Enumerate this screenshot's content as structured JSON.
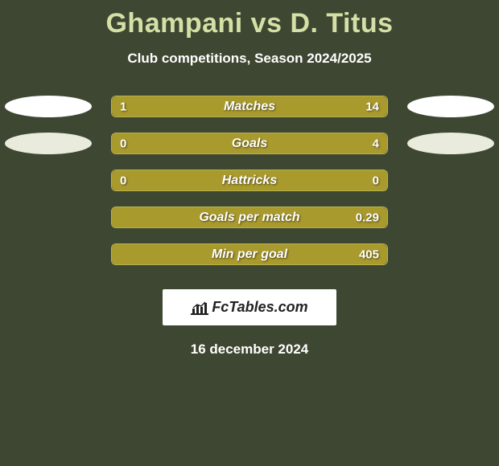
{
  "title": "Ghampani vs D. Titus",
  "subtitle": "Club competitions, Season 2024/2025",
  "date": "16 december 2024",
  "logo_text": "FcTables.com",
  "colors": {
    "title": "#d4e0a5",
    "background": "#3e4732",
    "oval_fill": "#ffffff",
    "oval_fill2": "#e9ecdc",
    "bar_fill": "#a99a2e",
    "bar_border": "#b8b24e",
    "text": "#ffffff"
  },
  "rows": [
    {
      "label": "Matches",
      "left_val": "1",
      "right_val": "14",
      "left_pct": 18,
      "right_pct": 82,
      "show_left_oval": true,
      "show_right_oval": true,
      "left_oval_color": "#ffffff",
      "right_oval_color": "#ffffff"
    },
    {
      "label": "Goals",
      "left_val": "0",
      "right_val": "4",
      "left_pct": 0,
      "right_pct": 100,
      "show_left_oval": true,
      "show_right_oval": true,
      "left_oval_color": "#e9ecdc",
      "right_oval_color": "#e9ecdc"
    },
    {
      "label": "Hattricks",
      "left_val": "0",
      "right_val": "0",
      "left_pct": 100,
      "right_pct": 0,
      "show_left_oval": false,
      "show_right_oval": false
    },
    {
      "label": "Goals per match",
      "left_val": "",
      "right_val": "0.29",
      "left_pct": 0,
      "right_pct": 100,
      "show_left_oval": false,
      "show_right_oval": false
    },
    {
      "label": "Min per goal",
      "left_val": "",
      "right_val": "405",
      "left_pct": 0,
      "right_pct": 100,
      "show_left_oval": false,
      "show_right_oval": false
    }
  ]
}
